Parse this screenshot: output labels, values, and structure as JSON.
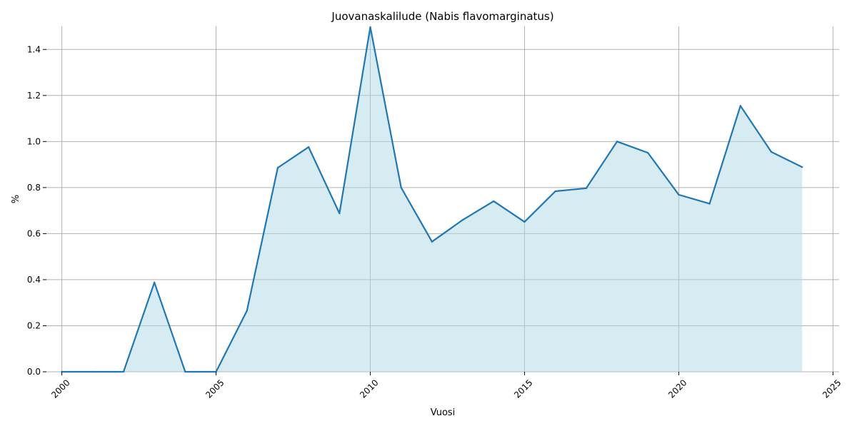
{
  "chart_data": {
    "type": "area",
    "title": "Juovanaskalilude (Nabis flavomarginatus)",
    "xlabel": "Vuosi",
    "ylabel": "%",
    "xlim": [
      1999.5,
      2025.2
    ],
    "ylim": [
      0,
      1.5
    ],
    "xticks": [
      2000,
      2005,
      2010,
      2015,
      2020,
      2025
    ],
    "yticks": [
      0.0,
      0.2,
      0.4,
      0.6,
      0.8,
      1.0,
      1.2,
      1.4
    ],
    "ytick_labels": [
      "0.0",
      "0.2",
      "0.4",
      "0.6",
      "0.8",
      "1.0",
      "1.2",
      "1.4"
    ],
    "grid": true,
    "line_color": "#1f77b4",
    "fill_color": "#add8e6",
    "x": [
      2000,
      2001,
      2002,
      2003,
      2004,
      2005,
      2006,
      2007,
      2008,
      2009,
      2010,
      2011,
      2012,
      2013,
      2014,
      2015,
      2016,
      2017,
      2018,
      2019,
      2020,
      2021,
      2022,
      2023,
      2024
    ],
    "values": [
      0.0,
      0.0,
      0.0,
      0.388,
      0.0,
      0.0,
      0.265,
      0.886,
      0.976,
      0.688,
      1.497,
      0.8,
      0.565,
      0.66,
      0.741,
      0.651,
      0.784,
      0.797,
      1.0,
      0.951,
      0.769,
      0.73,
      1.155,
      0.955,
      0.889
    ]
  }
}
